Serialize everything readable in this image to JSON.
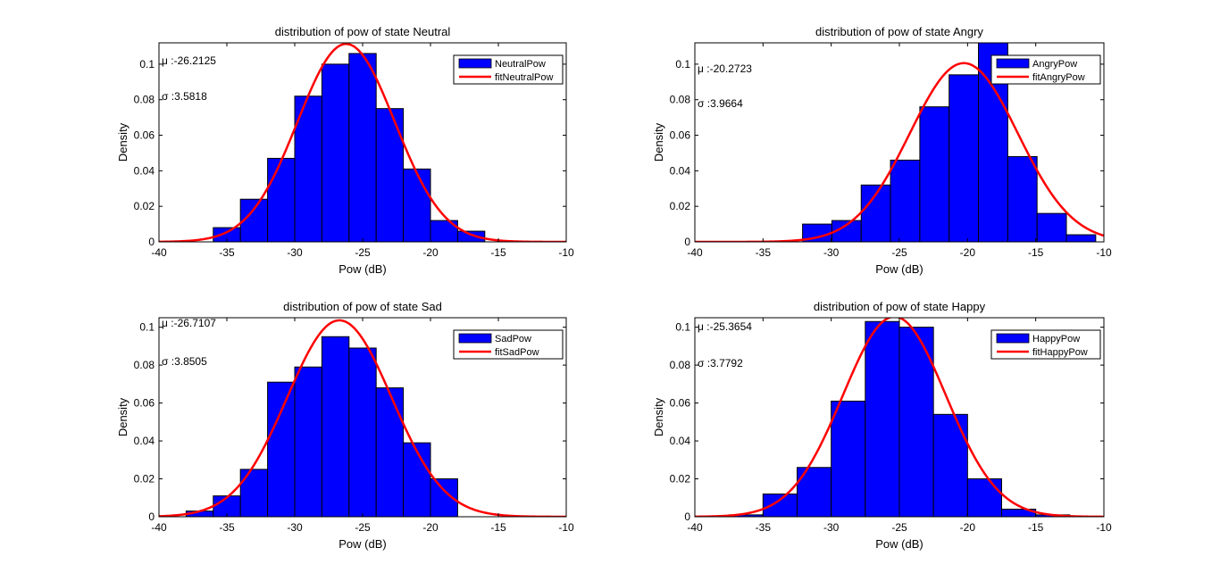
{
  "chart_data": [
    {
      "type": "bar",
      "title": "distribution of pow of state Neutral",
      "xlabel": "Pow (dB)",
      "ylabel": "Density",
      "xlim": [
        -40,
        -10
      ],
      "ylim": [
        0,
        0.112
      ],
      "xticks": [
        -40,
        -35,
        -30,
        -25,
        -20,
        -15,
        -10
      ],
      "yticks": [
        0,
        0.02,
        0.04,
        0.06,
        0.08,
        0.1
      ],
      "bin_edges": [
        -36,
        -34,
        -32,
        -30,
        -28,
        -26,
        -24,
        -22,
        -20,
        -18,
        -16
      ],
      "values": [
        0.008,
        0.024,
        0.047,
        0.082,
        0.1,
        0.106,
        0.075,
        0.041,
        0.012,
        0.006
      ],
      "legend": [
        "NeutralPow",
        "fitNeutralPow"
      ],
      "legend_position": "top-right",
      "fit": {
        "mu": -26.2125,
        "sigma": 3.5818
      },
      "mu_label": "μ :-26.2125",
      "sigma_label": "σ :3.5818",
      "colors": {
        "bars": "#0000ff",
        "fit": "#ff0000"
      }
    },
    {
      "type": "bar",
      "title": "distribution of pow of state Angry",
      "xlabel": "Pow (dB)",
      "ylabel": "Density",
      "xlim": [
        -40,
        -10
      ],
      "ylim": [
        0,
        0.112
      ],
      "xticks": [
        -40,
        -35,
        -30,
        -25,
        -20,
        -15,
        -10
      ],
      "yticks": [
        0,
        0.02,
        0.04,
        0.06,
        0.08,
        0.1
      ],
      "bin_edges": [
        -32.1,
        -29.95,
        -27.8,
        -25.65,
        -23.5,
        -21.35,
        -19.2,
        -17.05,
        -14.9,
        -12.75,
        -10.6
      ],
      "values": [
        0.01,
        0.012,
        0.032,
        0.046,
        0.076,
        0.094,
        0.13,
        0.048,
        0.016,
        0.004
      ],
      "legend": [
        "AngryPow",
        "fitAngryPow"
      ],
      "legend_position": "top-right",
      "fit": {
        "mu": -20.2723,
        "sigma": 3.9664
      },
      "mu_label": "μ :-20.2723",
      "sigma_label": "σ :3.9664",
      "colors": {
        "bars": "#0000ff",
        "fit": "#ff0000"
      }
    },
    {
      "type": "bar",
      "title": "distribution of pow of state Sad",
      "xlabel": "Pow (dB)",
      "ylabel": "Density",
      "xlim": [
        -40,
        -10
      ],
      "ylim": [
        0,
        0.105
      ],
      "xticks": [
        -40,
        -35,
        -30,
        -25,
        -20,
        -15,
        -10
      ],
      "yticks": [
        0,
        0.02,
        0.04,
        0.06,
        0.08,
        0.1
      ],
      "bin_edges": [
        -38,
        -36,
        -34,
        -32,
        -30,
        -28,
        -26,
        -24,
        -22,
        -20,
        -18
      ],
      "values": [
        0.003,
        0.011,
        0.025,
        0.071,
        0.079,
        0.095,
        0.089,
        0.068,
        0.039,
        0.02
      ],
      "legend": [
        "SadPow",
        "fitSadPow"
      ],
      "legend_position": "top-right",
      "fit": {
        "mu": -26.7107,
        "sigma": 3.8505
      },
      "mu_label": "μ :-26.7107",
      "sigma_label": "σ :3.8505",
      "colors": {
        "bars": "#0000ff",
        "fit": "#ff0000"
      }
    },
    {
      "type": "bar",
      "title": "distribution of pow of state Happy",
      "xlabel": "Pow (dB)",
      "ylabel": "Density",
      "xlim": [
        -40,
        -10
      ],
      "ylim": [
        0,
        0.105
      ],
      "xticks": [
        -40,
        -35,
        -30,
        -25,
        -20,
        -15,
        -10
      ],
      "yticks": [
        0,
        0.02,
        0.04,
        0.06,
        0.08,
        0.1
      ],
      "bin_edges": [
        -37.5,
        -35,
        -32.5,
        -30,
        -27.5,
        -25,
        -22.5,
        -20,
        -17.5,
        -15,
        -12.5
      ],
      "values": [
        0.001,
        0.012,
        0.026,
        0.061,
        0.103,
        0.1,
        0.054,
        0.02,
        0.004,
        0.001
      ],
      "legend": [
        "HappyPow",
        "fitHappyPow"
      ],
      "legend_position": "top-right",
      "fit": {
        "mu": -25.3654,
        "sigma": 3.7792
      },
      "mu_label": "μ :-25.3654",
      "sigma_label": "σ :3.7792",
      "colors": {
        "bars": "#0000ff",
        "fit": "#ff0000"
      }
    }
  ]
}
